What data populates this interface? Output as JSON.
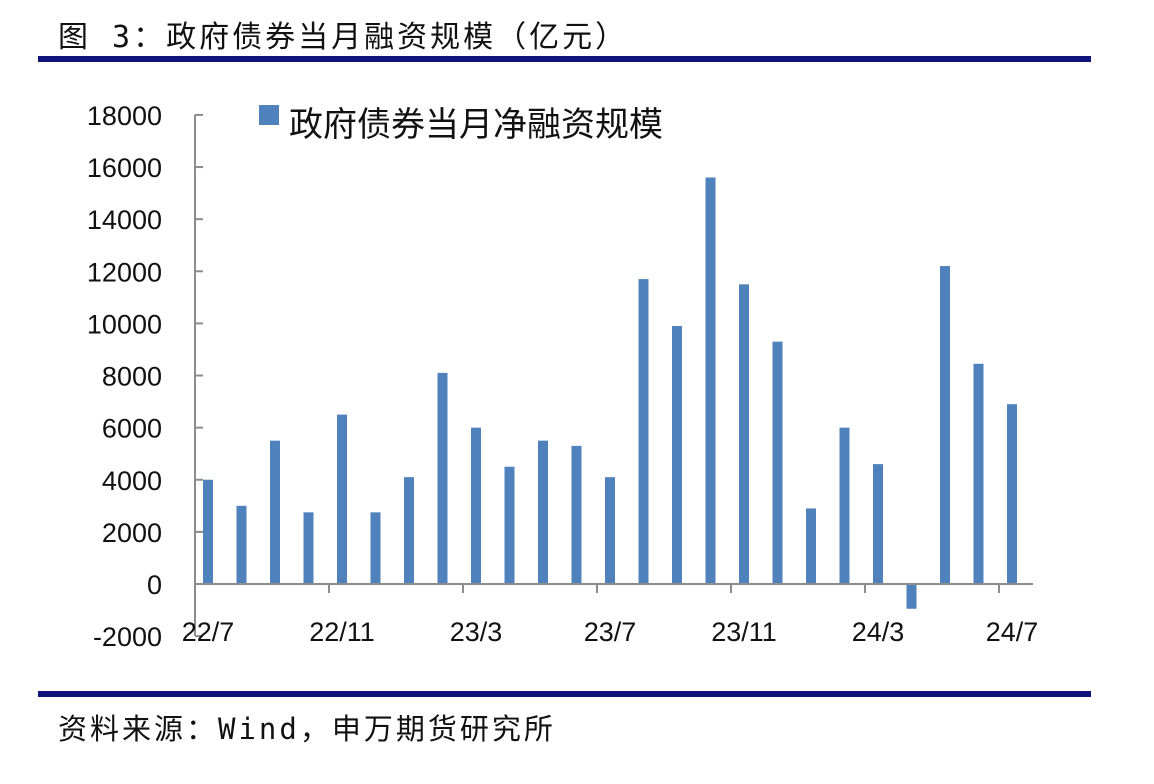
{
  "header": {
    "title": "图 3：政府债券当月融资规模（亿元）"
  },
  "footer": {
    "source": "资料来源：Wind，申万期货研究所"
  },
  "colors": {
    "bar": "#4f81bd",
    "rule": "#10137a",
    "axis": "#8c8c8c"
  },
  "chart_data": {
    "type": "bar",
    "title": "政府债券当月融资规模（亿元）",
    "xlabel": "",
    "ylabel": "",
    "ylim": [
      -2000,
      18000
    ],
    "yticks": [
      -2000,
      0,
      2000,
      4000,
      6000,
      8000,
      10000,
      12000,
      14000,
      16000,
      18000
    ],
    "xtick_labels": [
      "22/7",
      "22/11",
      "23/3",
      "23/7",
      "23/11",
      "24/3",
      "24/7"
    ],
    "grid": false,
    "legend_position": "top",
    "categories": [
      "22/7",
      "22/8",
      "22/9",
      "22/10",
      "22/11",
      "22/12",
      "23/1",
      "23/2",
      "23/3",
      "23/4",
      "23/5",
      "23/6",
      "23/7",
      "23/8",
      "23/9",
      "23/10",
      "23/11",
      "23/12",
      "24/1",
      "24/2",
      "24/3",
      "24/4",
      "24/5",
      "24/6",
      "24/7"
    ],
    "series": [
      {
        "name": "政府债券当月净融资规模",
        "values": [
          4000,
          3000,
          5500,
          2750,
          6500,
          2750,
          4100,
          8100,
          6000,
          4500,
          5500,
          5300,
          4100,
          11700,
          9900,
          15600,
          11500,
          9300,
          2900,
          6000,
          4600,
          -950,
          12200,
          8450,
          6900
        ]
      }
    ]
  }
}
